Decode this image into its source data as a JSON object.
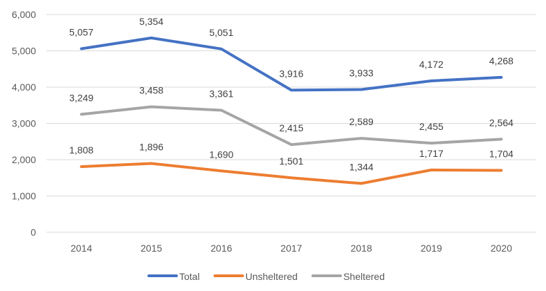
{
  "chart_data": {
    "type": "line",
    "title": "",
    "xlabel": "",
    "ylabel": "",
    "x": [
      "2014",
      "2015",
      "2016",
      "2017",
      "2018",
      "2019",
      "2020"
    ],
    "ylim": [
      0,
      6000
    ],
    "yticks": [
      0,
      1000,
      2000,
      3000,
      4000,
      5000,
      6000
    ],
    "ytick_labels": [
      "0",
      "1,000",
      "2,000",
      "3,000",
      "4,000",
      "5,000",
      "6,000"
    ],
    "grid": true,
    "legend_position": "bottom",
    "series": [
      {
        "name": "Total",
        "color": "#4472c4",
        "values": [
          5057,
          5354,
          5051,
          3916,
          3933,
          4172,
          4268
        ],
        "labels": [
          "5,057",
          "5,354",
          "5,051",
          "3,916",
          "3,933",
          "4,172",
          "4,268"
        ]
      },
      {
        "name": "Unsheltered",
        "color": "#ed7d31",
        "values": [
          1808,
          1896,
          1690,
          1501,
          1344,
          1717,
          1704
        ],
        "labels": [
          "1,808",
          "1,896",
          "1,690",
          "1,501",
          "1,344",
          "1,717",
          "1,704"
        ]
      },
      {
        "name": "Sheltered",
        "color": "#a5a5a5",
        "values": [
          3249,
          3458,
          3361,
          2415,
          2589,
          2455,
          2564
        ],
        "labels": [
          "3,249",
          "3,458",
          "3,361",
          "2,415",
          "2,589",
          "2,455",
          "2,564"
        ]
      }
    ]
  }
}
